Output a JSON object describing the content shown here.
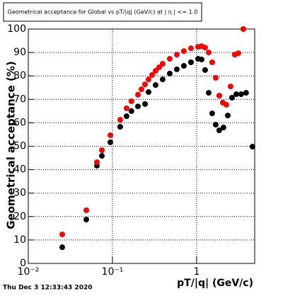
{
  "chart_data": {
    "type": "scatter",
    "title": "Geometrical acceptance for Global vs pT/|q| (GeV/c) at | η | <= 1.0",
    "x_label": "pT/|q| (GeV/c)",
    "y_label": "Geometrical acceptance (%)",
    "timestamp": "Thu Dec  3 12:33:43 2020",
    "xlog": true,
    "grid": true,
    "xlim": [
      0.01,
      4.9
    ],
    "ylim": [
      0,
      100
    ],
    "xticks": [
      {
        "value": 0.01,
        "label": "10⁻²"
      },
      {
        "value": 0.1,
        "label": "10⁻¹"
      },
      1
    ],
    "yticks": [
      0,
      10,
      20,
      30,
      40,
      50,
      60,
      70,
      80,
      90,
      100
    ],
    "series": [
      {
        "color": "#000000",
        "x": [
          0.0253,
          0.0489,
          0.0653,
          0.0749,
          0.0944,
          0.1236,
          0.147,
          0.168,
          0.2008,
          0.2436,
          0.2683,
          0.3256,
          0.3951,
          0.4795,
          0.582,
          0.706,
          0.857,
          1.04,
          1.146,
          1.262,
          1.39,
          1.531,
          1.687,
          1.858,
          2.085,
          2.344,
          2.63,
          2.96,
          3.38,
          3.87,
          4.61
        ],
        "values": [
          6.9,
          18.7,
          41.7,
          45.9,
          51.7,
          58.3,
          62.8,
          65,
          67,
          68,
          73.1,
          76.1,
          78.5,
          81,
          82.8,
          84.3,
          85.8,
          87.3,
          87,
          82.5,
          72.8,
          64,
          59.2,
          56.8,
          58,
          63.1,
          70.7,
          72.2,
          72.2,
          72.8,
          49.8
        ]
      },
      {
        "color": "#ff0000",
        "x": [
          0.0253,
          0.0489,
          0.0653,
          0.0749,
          0.0944,
          0.1236,
          0.147,
          0.168,
          0.2008,
          0.2211,
          0.2436,
          0.2683,
          0.2955,
          0.3256,
          0.3587,
          0.3951,
          0.4795,
          0.582,
          0.706,
          0.857,
          1.04,
          1.146,
          1.262,
          1.39,
          1.531,
          1.687,
          1.858,
          2.047,
          2.254,
          2.53,
          2.84,
          3.13,
          3.59
        ],
        "values": [
          12.4,
          22.7,
          43.2,
          48.3,
          54.7,
          61.3,
          66.2,
          69.2,
          72,
          74.3,
          76.4,
          78.5,
          80.4,
          82.2,
          83.7,
          85.2,
          87.3,
          89.1,
          90.6,
          91.8,
          92.4,
          92.7,
          92.1,
          90,
          85.8,
          79.2,
          71.6,
          68.6,
          67.7,
          75.5,
          89.1,
          89.7,
          100
        ]
      }
    ]
  }
}
